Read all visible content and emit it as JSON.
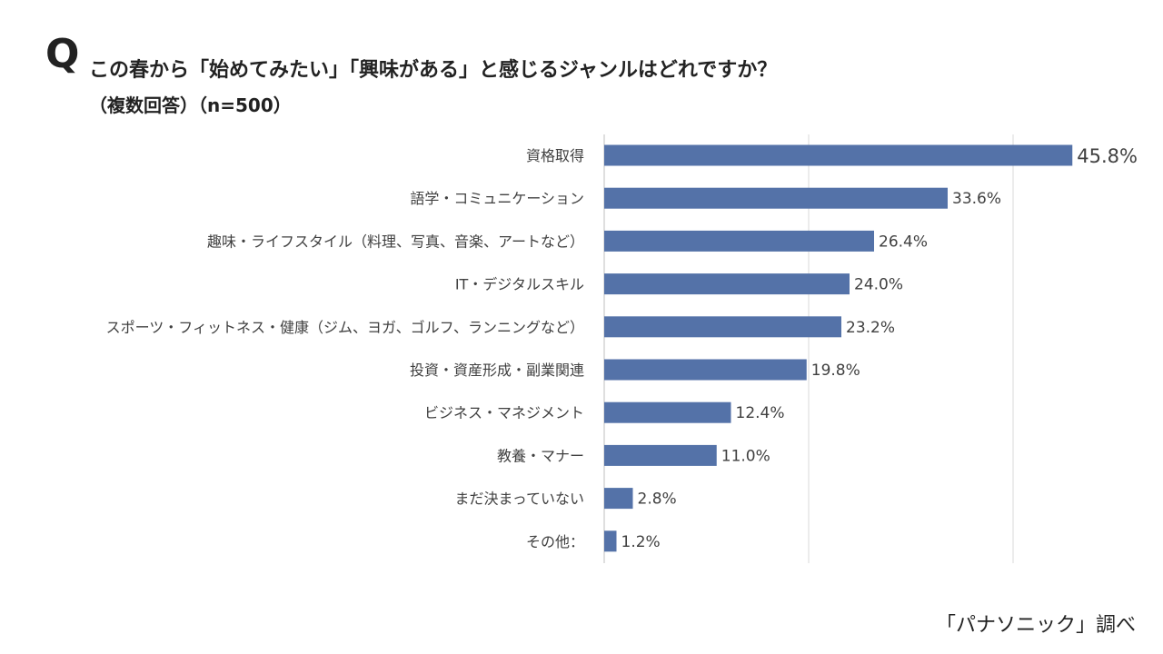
{
  "header": {
    "q_mark": "Q",
    "question": "この春から「始めてみたい」「興味がある」と感じるジャンルはどれですか？",
    "subtitle": "（複数回答）（n=500）"
  },
  "source": "「パナソニック」調べ",
  "colors": {
    "bar": "#5472a8",
    "grid": "#d9d9d9",
    "axis": "#bfbfbf"
  },
  "chart_data": {
    "type": "bar",
    "orientation": "horizontal",
    "unit": "%",
    "xlim": [
      0,
      50
    ],
    "grid": true,
    "categories": [
      "資格取得",
      "語学・コミュニケーション",
      "趣味・ライフスタイル（料理、写真、音楽、アートなど）",
      "IT・デジタルスキル",
      "スポーツ・フィットネス・健康（ジム、ヨガ、ゴルフ、ランニングなど）",
      "投資・資産形成・副業関連",
      "ビジネス・マネジメント",
      "教養・マナー",
      "まだ決まっていない",
      "その他："
    ],
    "values": [
      45.8,
      33.6,
      26.4,
      24.0,
      23.2,
      19.8,
      12.4,
      11.0,
      2.8,
      1.2
    ],
    "value_labels": [
      "45.8%",
      "33.6%",
      "26.4%",
      "24.0%",
      "23.2%",
      "19.8%",
      "12.4%",
      "11.0%",
      "2.8%",
      "1.2%"
    ]
  }
}
